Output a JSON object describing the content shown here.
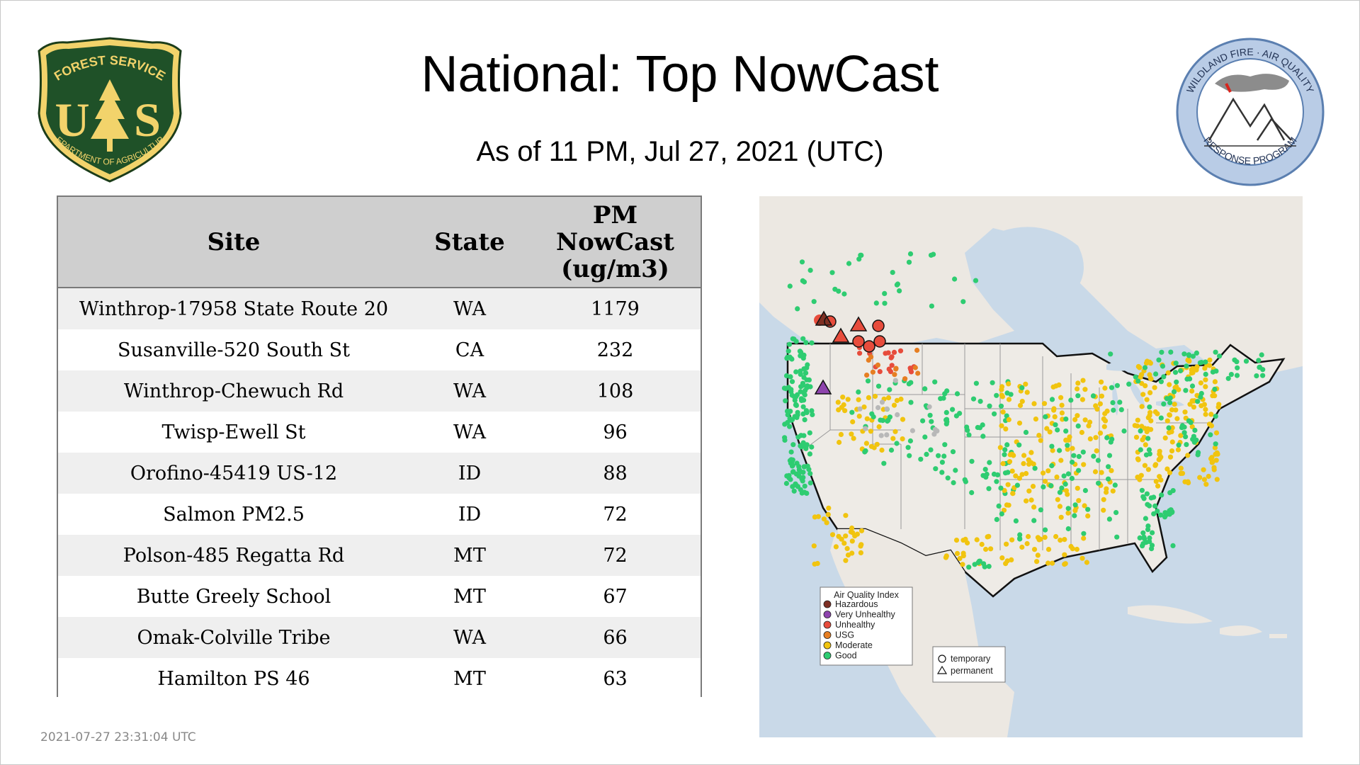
{
  "header": {
    "title": "National: Top NowCast",
    "subtitle": "As of 11 PM, Jul 27, 2021 (UTC)"
  },
  "logos": {
    "usfs": {
      "top_text": "FOREST SERVICE",
      "bottom_text": "DEPARTMENT OF AGRICULTURE",
      "letters": "US",
      "icon": "forest-service-shield-icon"
    },
    "wfaq": {
      "top_text": "WILDLAND FIRE · AIR QUALITY",
      "bottom_text": "RESPONSE PROGRAM",
      "icon": "mountain-smoke-icon"
    }
  },
  "table": {
    "headers": [
      "Site",
      "State",
      "PM NowCast (ug/m3)"
    ],
    "header_lines": {
      "pm": [
        "PM",
        "NowCast",
        "(ug/m3)"
      ]
    },
    "rows": [
      {
        "site": "Winthrop-17958 State Route 20",
        "state": "WA",
        "value": "1179"
      },
      {
        "site": "Susanville-520 South St",
        "state": "CA",
        "value": "232"
      },
      {
        "site": "Winthrop-Chewuch Rd",
        "state": "WA",
        "value": "108"
      },
      {
        "site": "Twisp-Ewell St",
        "state": "WA",
        "value": "96"
      },
      {
        "site": "Orofino-45419 US-12",
        "state": "ID",
        "value": "88"
      },
      {
        "site": "Salmon PM2.5",
        "state": "ID",
        "value": "72"
      },
      {
        "site": "Polson-485 Regatta Rd",
        "state": "MT",
        "value": "72"
      },
      {
        "site": "Butte Greely School",
        "state": "MT",
        "value": "67"
      },
      {
        "site": "Omak-Colville Tribe",
        "state": "WA",
        "value": "66"
      },
      {
        "site": "Hamilton PS 46",
        "state": "MT",
        "value": "63"
      }
    ]
  },
  "map": {
    "legend_title": "Air Quality Index",
    "legend_items": [
      {
        "label": "Hazardous",
        "color": "#7e2f23"
      },
      {
        "label": "Very Unhealthy",
        "color": "#8e44ad"
      },
      {
        "label": "Unhealthy",
        "color": "#e74c3c"
      },
      {
        "label": "USG",
        "color": "#e67e22"
      },
      {
        "label": "Moderate",
        "color": "#f1c40f"
      },
      {
        "label": "Good",
        "color": "#2ecc71"
      }
    ],
    "shape_legend": [
      {
        "label": "temporary",
        "shape": "circle"
      },
      {
        "label": "permanent",
        "shape": "triangle"
      }
    ],
    "colors": {
      "water": "#c9d9e8",
      "land": "#eeebe6",
      "border": "#111111",
      "unknown": "#b8b8b8"
    }
  },
  "footer": {
    "timestamp": "2021-07-27 23:31:04 UTC"
  }
}
